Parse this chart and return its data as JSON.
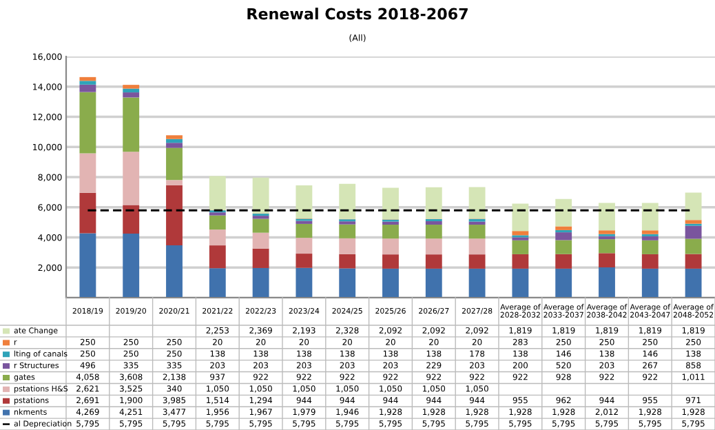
{
  "chart_data": {
    "type": "bar",
    "title": "Renewal Costs 2018-2067",
    "subtitle": "(All)",
    "stacked": true,
    "grid": "y",
    "legend": "bottom",
    "categories": [
      "2018/19",
      "2019/20",
      "2020/21",
      "2021/22",
      "2022/23",
      "2023/24",
      "2024/25",
      "2025/26",
      "2026/27",
      "2027/28",
      "Average of\n2028-2032",
      "Average of\n2033-2037",
      "Average of\n2038-2042",
      "Average of\n2043-2047",
      "Average of\n2048-2052"
    ],
    "ylim": [
      0,
      16000
    ],
    "yticks": [
      {
        "value": 0,
        "label": null
      },
      {
        "value": 2000,
        "label": "2,000"
      },
      {
        "value": 4000,
        "label": "4,000"
      },
      {
        "value": 6000,
        "label": "6,000"
      },
      {
        "value": 8000,
        "label": "8,000"
      },
      {
        "value": 10000,
        "label": "10,000"
      },
      {
        "value": 12000,
        "label": "12,000"
      },
      {
        "value": 14000,
        "label": "14,000"
      },
      {
        "value": 16000,
        "label": "16,000"
      }
    ],
    "series": [
      {
        "name": "nkments",
        "color": "#4072ad",
        "values": [
          4269,
          4251,
          3477,
          1956,
          1967,
          1979,
          1946,
          1928,
          1928,
          1928,
          1928,
          1928,
          2012,
          1928,
          1928
        ],
        "value_labels": [
          "4,269",
          "4,251",
          "3,477",
          "1,956",
          "1,967",
          "1,979",
          "1,946",
          "1,928",
          "1,928",
          "1,928",
          "1,928",
          "1,928",
          "2,012",
          "1,928",
          "1,928"
        ]
      },
      {
        "name": "pstations",
        "color": "#b0393a",
        "values": [
          2691,
          1900,
          3985,
          1514,
          1294,
          944,
          944,
          944,
          944,
          944,
          955,
          962,
          944,
          955,
          971
        ],
        "value_labels": [
          "2,691",
          "1,900",
          "3,985",
          "1,514",
          "1,294",
          "944",
          "944",
          "944",
          "944",
          "944",
          "955",
          "962",
          "944",
          "955",
          "971"
        ]
      },
      {
        "name": "pstations H&S",
        "color": "#e2b4b3",
        "values": [
          2621,
          3525,
          340,
          1050,
          1050,
          1050,
          1050,
          1050,
          1050,
          1050,
          null,
          null,
          null,
          null,
          null
        ],
        "value_labels": [
          "2,621",
          "3,525",
          "340",
          "1,050",
          "1,050",
          "1,050",
          "1,050",
          "1,050",
          "1,050",
          "1,050",
          null,
          null,
          null,
          null,
          null
        ]
      },
      {
        "name": "gates",
        "color": "#8aac4c",
        "values": [
          4058,
          3608,
          2138,
          937,
          922,
          922,
          922,
          922,
          922,
          922,
          922,
          928,
          922,
          922,
          1011
        ],
        "value_labels": [
          "4,058",
          "3,608",
          "2,138",
          "937",
          "922",
          "922",
          "922",
          "922",
          "922",
          "922",
          "922",
          "928",
          "922",
          "922",
          "1,011"
        ]
      },
      {
        "name": "r Structures",
        "color": "#7a559e",
        "values": [
          496,
          335,
          335,
          203,
          203,
          203,
          203,
          203,
          229,
          203,
          200,
          520,
          203,
          267,
          858
        ],
        "value_labels": [
          "496",
          "335",
          "335",
          "203",
          "203",
          "203",
          "203",
          "203",
          "229",
          "203",
          "200",
          "520",
          "203",
          "267",
          "858"
        ]
      },
      {
        "name": "lting of canals",
        "color": "#2ea3b9",
        "values": [
          250,
          250,
          250,
          138,
          138,
          138,
          138,
          138,
          138,
          178,
          138,
          146,
          138,
          146,
          138
        ],
        "value_labels": [
          "250",
          "250",
          "250",
          "138",
          "138",
          "138",
          "138",
          "138",
          "138",
          "178",
          "138",
          "146",
          "138",
          "146",
          "138"
        ]
      },
      {
        "name": "r",
        "color": "#ef7f3c",
        "values": [
          250,
          250,
          250,
          20,
          20,
          20,
          20,
          20,
          20,
          20,
          283,
          250,
          250,
          250,
          250
        ],
        "value_labels": [
          "250",
          "250",
          "250",
          "20",
          "20",
          "20",
          "20",
          "20",
          "20",
          "20",
          "283",
          "250",
          "250",
          "250",
          "250"
        ]
      },
      {
        "name": "ate Change",
        "color": "#d5e5b6",
        "values": [
          null,
          null,
          null,
          2253,
          2369,
          2193,
          2328,
          2092,
          2092,
          2092,
          1819,
          1819,
          1819,
          1819,
          1819
        ],
        "value_labels": [
          null,
          null,
          null,
          "2,253",
          "2,369",
          "2,193",
          "2,328",
          "2,092",
          "2,092",
          "2,092",
          "1,819",
          "1,819",
          "1,819",
          "1,819",
          "1,819"
        ]
      },
      {
        "name": "al Depreciation",
        "type": "line",
        "line_style": "dashed",
        "color": "#000000",
        "values": [
          5795,
          5795,
          5795,
          5795,
          5795,
          5795,
          5795,
          5795,
          5795,
          5795,
          5795,
          5795,
          5795,
          5795,
          5795
        ],
        "value_labels": [
          "5,795",
          "5,795",
          "5,795",
          "5,795",
          "5,795",
          "5,795",
          "5,795",
          "5,795",
          "5,795",
          "5,795",
          "5,795",
          "5,795",
          "5,795",
          "5,795",
          "5,795"
        ]
      }
    ]
  }
}
